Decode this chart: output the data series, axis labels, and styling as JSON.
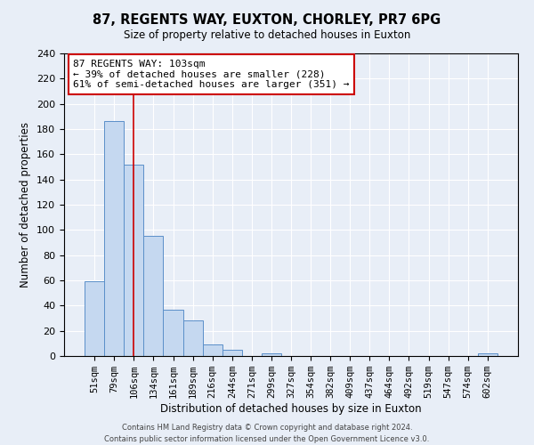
{
  "title": "87, REGENTS WAY, EUXTON, CHORLEY, PR7 6PG",
  "subtitle": "Size of property relative to detached houses in Euxton",
  "xlabel": "Distribution of detached houses by size in Euxton",
  "ylabel": "Number of detached properties",
  "bar_labels": [
    "51sqm",
    "79sqm",
    "106sqm",
    "134sqm",
    "161sqm",
    "189sqm",
    "216sqm",
    "244sqm",
    "271sqm",
    "299sqm",
    "327sqm",
    "354sqm",
    "382sqm",
    "409sqm",
    "437sqm",
    "464sqm",
    "492sqm",
    "519sqm",
    "547sqm",
    "574sqm",
    "602sqm"
  ],
  "bar_values": [
    59,
    186,
    152,
    95,
    37,
    28,
    9,
    5,
    0,
    2,
    0,
    0,
    0,
    0,
    0,
    0,
    0,
    0,
    0,
    0,
    2
  ],
  "bar_color": "#c5d8f0",
  "bar_edge_color": "#5b8fc9",
  "ylim": [
    0,
    240
  ],
  "yticks": [
    0,
    20,
    40,
    60,
    80,
    100,
    120,
    140,
    160,
    180,
    200,
    220,
    240
  ],
  "vline_x": 2,
  "vline_color": "#cc0000",
  "annotation_text": "87 REGENTS WAY: 103sqm\n← 39% of detached houses are smaller (228)\n61% of semi-detached houses are larger (351) →",
  "annotation_box_color": "#ffffff",
  "annotation_box_edge": "#cc0000",
  "footer1": "Contains HM Land Registry data © Crown copyright and database right 2024.",
  "footer2": "Contains public sector information licensed under the Open Government Licence v3.0.",
  "background_color": "#e8eef7",
  "plot_background": "#e8eef7"
}
